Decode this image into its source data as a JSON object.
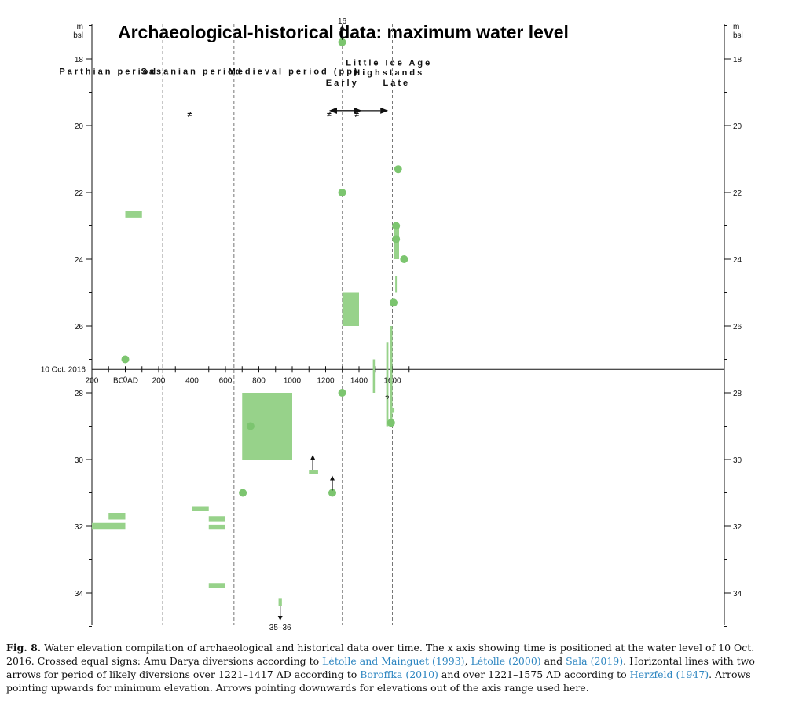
{
  "chart_data": {
    "type": "scatter",
    "title": "Archaeological-historical data: maximum water level",
    "ylabel_left": [
      "m",
      "bsl"
    ],
    "ylabel_right": [
      "m",
      "bsl"
    ],
    "ylim": [
      35,
      17
    ],
    "xlim": [
      -200,
      1700
    ],
    "y_ticks": [
      18,
      20,
      22,
      24,
      26,
      28,
      30,
      32,
      34
    ],
    "x_ticks": [
      {
        "value": -200,
        "label": "200"
      },
      {
        "value": 200,
        "label": "200"
      },
      {
        "value": 400,
        "label": "400"
      },
      {
        "value": 600,
        "label": "600"
      },
      {
        "value": 800,
        "label": "800"
      },
      {
        "value": 1000,
        "label": "1000"
      },
      {
        "value": 1200,
        "label": "1200"
      },
      {
        "value": 1400,
        "label": "1400"
      },
      {
        "value": 1600,
        "label": "1600"
      }
    ],
    "x_axis_level": 27.3,
    "x_axis_label": "10 Oct. 2016",
    "bc_label": "BC",
    "zero_label": "0",
    "ad_label": "AD",
    "period_boundaries": [
      224,
      651,
      1300,
      1600
    ],
    "periods": [
      {
        "label": "Parthian period",
        "x": -100
      },
      {
        "label": "Sasanian period",
        "x": 400
      },
      {
        "label": "Medieval period (pp)",
        "x": 1010
      },
      {
        "label": "Little Ice Age",
        "x": 1580,
        "level": 18.1
      },
      {
        "label": "Highstands",
        "x": 1580,
        "level": 18.4
      },
      {
        "label": "Early",
        "x": 1300,
        "level": 18.7
      },
      {
        "label": "Late",
        "x": 1625,
        "level": 18.7
      }
    ],
    "diversion_signs": [
      {
        "x": 385,
        "y": 19.6,
        "label": "≠"
      },
      {
        "x": 1221,
        "y": 19.6,
        "label": "≠"
      },
      {
        "x": 1387,
        "y": 19.6,
        "label": "≠"
      }
    ],
    "diversion_ranges": [
      [
        1221,
        1417
      ],
      [
        1221,
        1575
      ]
    ],
    "points": [
      {
        "x": 0,
        "y": 27.0
      },
      {
        "x": 1299,
        "y": 17.5
      },
      {
        "x": 1299,
        "y": 22.0
      },
      {
        "x": 1299,
        "y": 28.0
      },
      {
        "x": 1634,
        "y": 21.3
      },
      {
        "x": 1622,
        "y": 23.0
      },
      {
        "x": 1622,
        "y": 23.4
      },
      {
        "x": 1670,
        "y": 24.0
      },
      {
        "x": 1607,
        "y": 25.3
      },
      {
        "x": 1592,
        "y": 28.9
      },
      {
        "x": 750,
        "y": 29.0
      },
      {
        "x": 704,
        "y": 31.0
      },
      {
        "x": 1240,
        "y": 31.0
      }
    ],
    "ranges": [
      {
        "x0": 0,
        "x1": 100,
        "y0": 22.55,
        "y1": 22.75
      },
      {
        "x0": 1300,
        "x1": 1400,
        "y0": 25.0,
        "y1": 26.0
      },
      {
        "x0": 1610,
        "x1": 1640,
        "y0": 23.0,
        "y1": 24.0
      },
      {
        "x0": 1617,
        "x1": 1622,
        "y0": 24.5,
        "y1": 25.0
      },
      {
        "x0": 700,
        "x1": 1000,
        "y0": 28.0,
        "y1": 30.0
      },
      {
        "x0": 1483,
        "x1": 1495,
        "y0": 27.0,
        "y1": 28.0
      },
      {
        "x0": 1563,
        "x1": 1576,
        "y0": 26.5,
        "y1": 29.0
      },
      {
        "x0": 1588,
        "x1": 1600,
        "y0": 26.0,
        "y1": 29.0
      },
      {
        "x0": 1590,
        "x1": 1612,
        "y0": 28.45,
        "y1": 28.6
      },
      {
        "x0": 1100,
        "x1": 1155,
        "y0": 30.33,
        "y1": 30.43
      },
      {
        "x0": -200,
        "x1": 0,
        "y0": 31.9,
        "y1": 32.1
      },
      {
        "x0": -100,
        "x1": 0,
        "y0": 31.6,
        "y1": 31.8
      },
      {
        "x0": 400,
        "x1": 500,
        "y0": 31.4,
        "y1": 31.55
      },
      {
        "x0": 500,
        "x1": 600,
        "y0": 31.7,
        "y1": 31.85
      },
      {
        "x0": 500,
        "x1": 600,
        "y0": 31.95,
        "y1": 32.1
      },
      {
        "x0": 500,
        "x1": 600,
        "y0": 33.7,
        "y1": 33.85
      },
      {
        "x0": 918,
        "x1": 938,
        "y0": 34.15,
        "y1": 34.4
      }
    ],
    "up_arrows": [
      {
        "x": 1299,
        "y": 17.5,
        "label": "16"
      },
      {
        "x": 1123,
        "y": 30.38,
        "label": ""
      },
      {
        "x": 1240,
        "y": 31.0,
        "label": ""
      }
    ],
    "down_arrows": [
      {
        "x": 928,
        "y": 34.4,
        "label": "35–36"
      }
    ],
    "small_labels": [
      {
        "x": 1568,
        "y": 28.25,
        "label": "?"
      }
    ]
  },
  "caption": {
    "fig": "Fig. 8.",
    "p1": "Water elevation compilation of archaeological and historical data over time. The x axis showing time is positioned at the water level of 10 Oct. 2016. Crossed equal signs: Amu Darya diversions according to ",
    "r1": "Létolle and Mainguet (1993)",
    "p2": ", ",
    "r2": "Létolle (2000)",
    "p3": " and ",
    "r3": "Sala (2019)",
    "p4": ". Horizontal lines with two arrows for period of likely diversions over 1221–1417 AD according to ",
    "r4": "Boroffka (2010)",
    "p5": " and over 1221–1575 AD according to ",
    "r5": "Herzfeld (1947)",
    "p6": ". Arrows pointing upwards for minimum elevation. Arrows pointing downwards for elevations out of the axis range used here."
  },
  "colors": {
    "fill": "#97d28a",
    "point": "#7cc56f",
    "axis": "#111111",
    "link": "#2e86c1"
  }
}
